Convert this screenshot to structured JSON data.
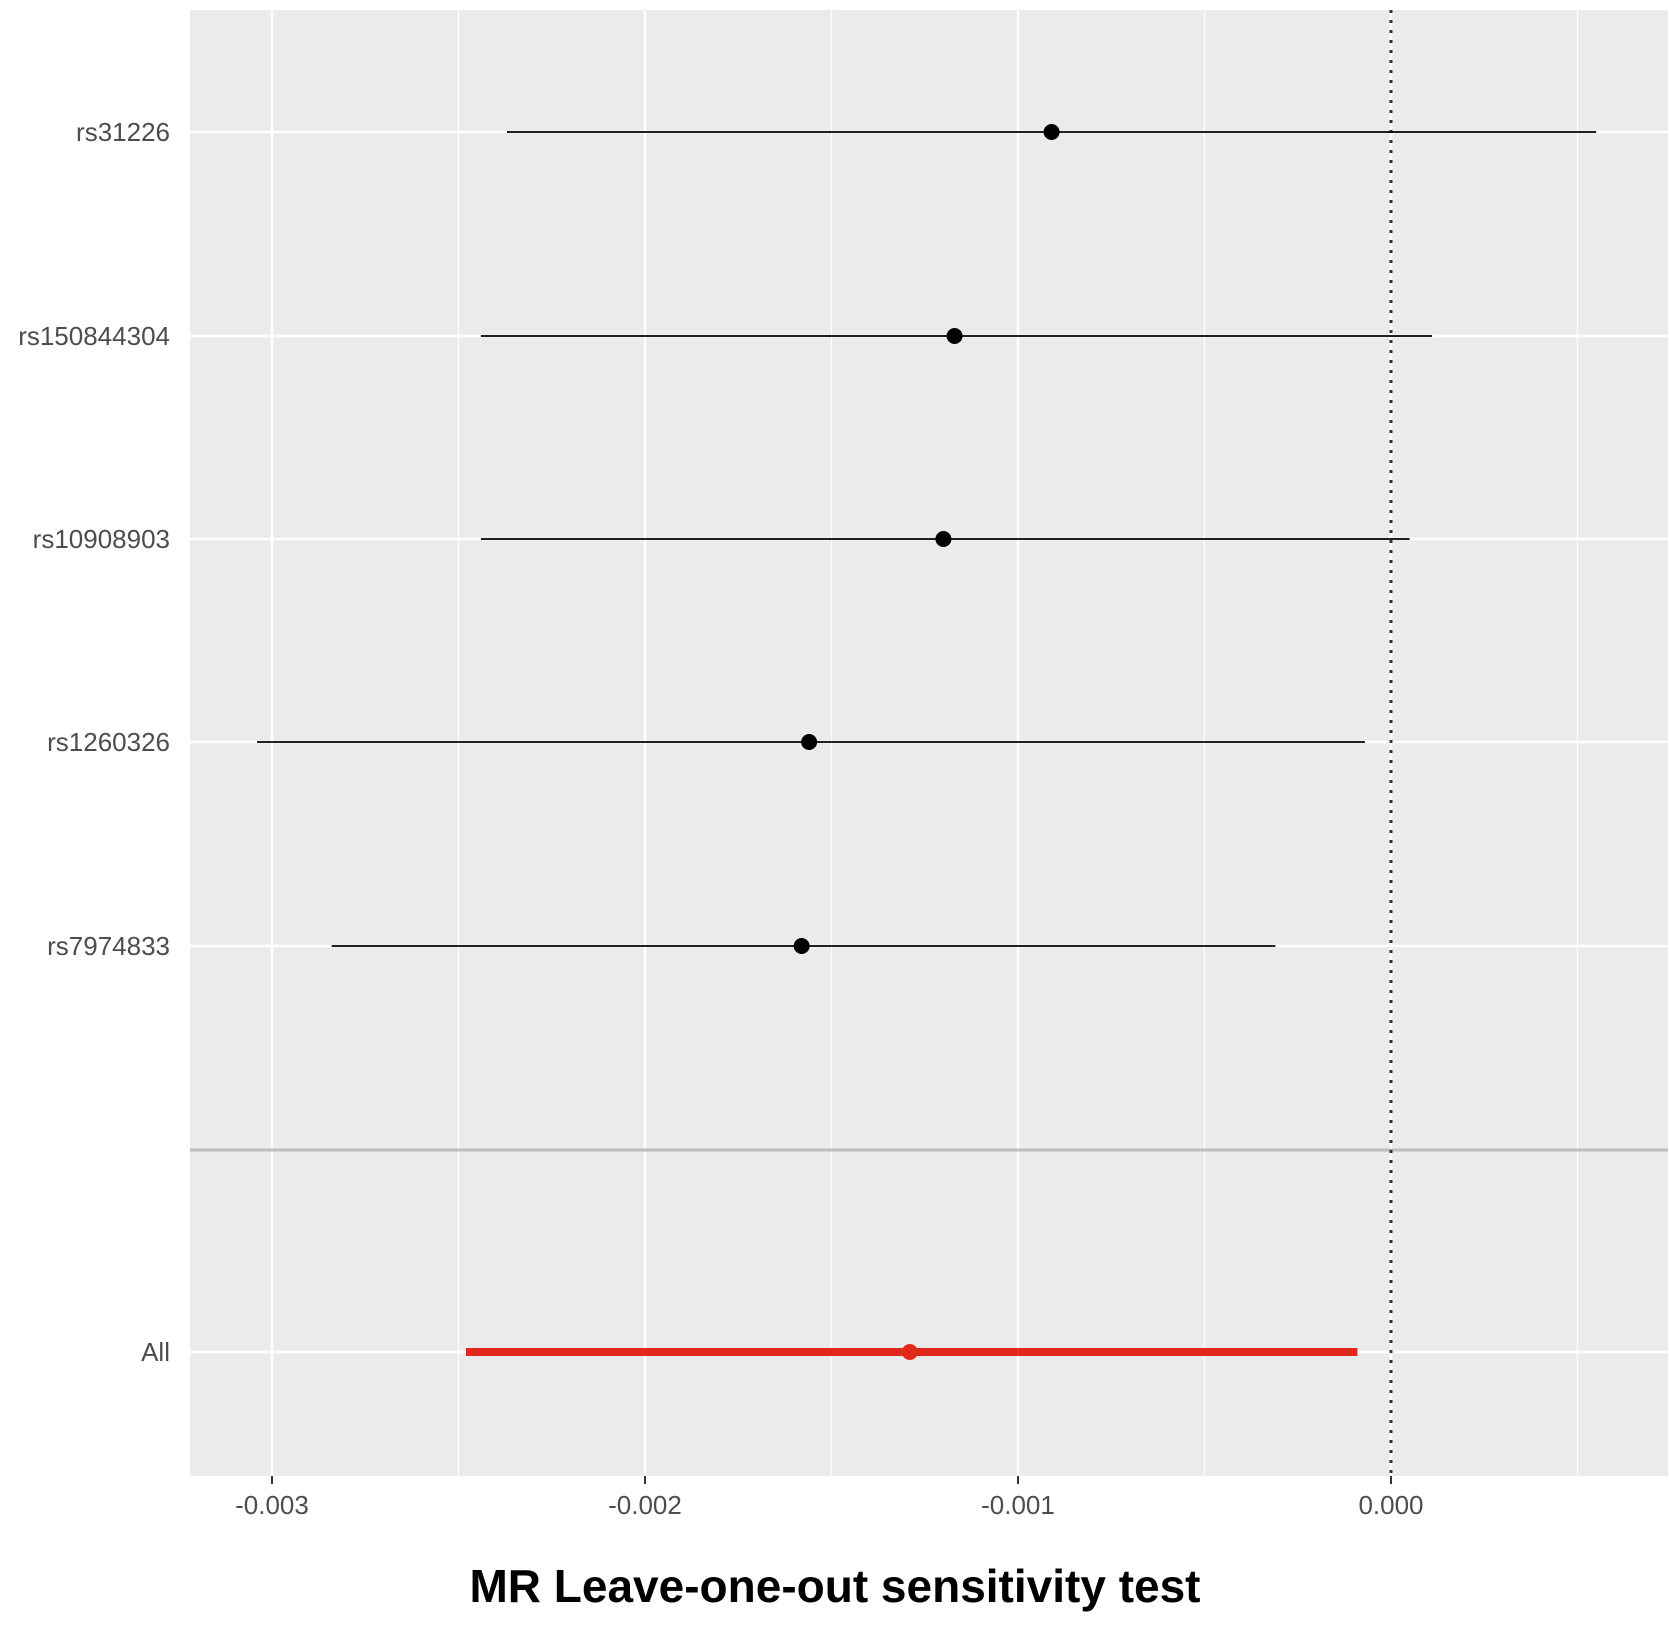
{
  "chart_data": {
    "type": "forest",
    "xlabel": "MR Leave-one-out sensitivity test",
    "x_ticks": [
      -0.003,
      -0.002,
      -0.001,
      0.0
    ],
    "x_tick_labels": [
      "-0.003",
      "-0.002",
      "-0.001",
      "0.000"
    ],
    "xlim": [
      -0.00322,
      0.00073
    ],
    "reference_line_x": 0,
    "grid": true,
    "rows": [
      {
        "label": "rs31226",
        "estimate": -0.00091,
        "ci_low": -0.00237,
        "ci_high": 0.00055
      },
      {
        "label": "rs150844304",
        "estimate": -0.00117,
        "ci_low": -0.00244,
        "ci_high": 0.00011
      },
      {
        "label": "rs10908903",
        "estimate": -0.0012,
        "ci_low": -0.00244,
        "ci_high": 5e-05
      },
      {
        "label": "rs1260326",
        "estimate": -0.00156,
        "ci_low": -0.00304,
        "ci_high": -7e-05
      },
      {
        "label": "rs7974833",
        "estimate": -0.00158,
        "ci_low": -0.00284,
        "ci_high": -0.00031
      },
      {
        "label": "All",
        "estimate": -0.00129,
        "ci_low": -0.00248,
        "ci_high": -9e-05,
        "summary": true
      }
    ],
    "colors": {
      "panel": "#ebebeb",
      "grid": "#ffffff",
      "point": "#000000",
      "summary": "#e0281d",
      "separator": "#bdbdbd",
      "reference": "#333333"
    }
  }
}
